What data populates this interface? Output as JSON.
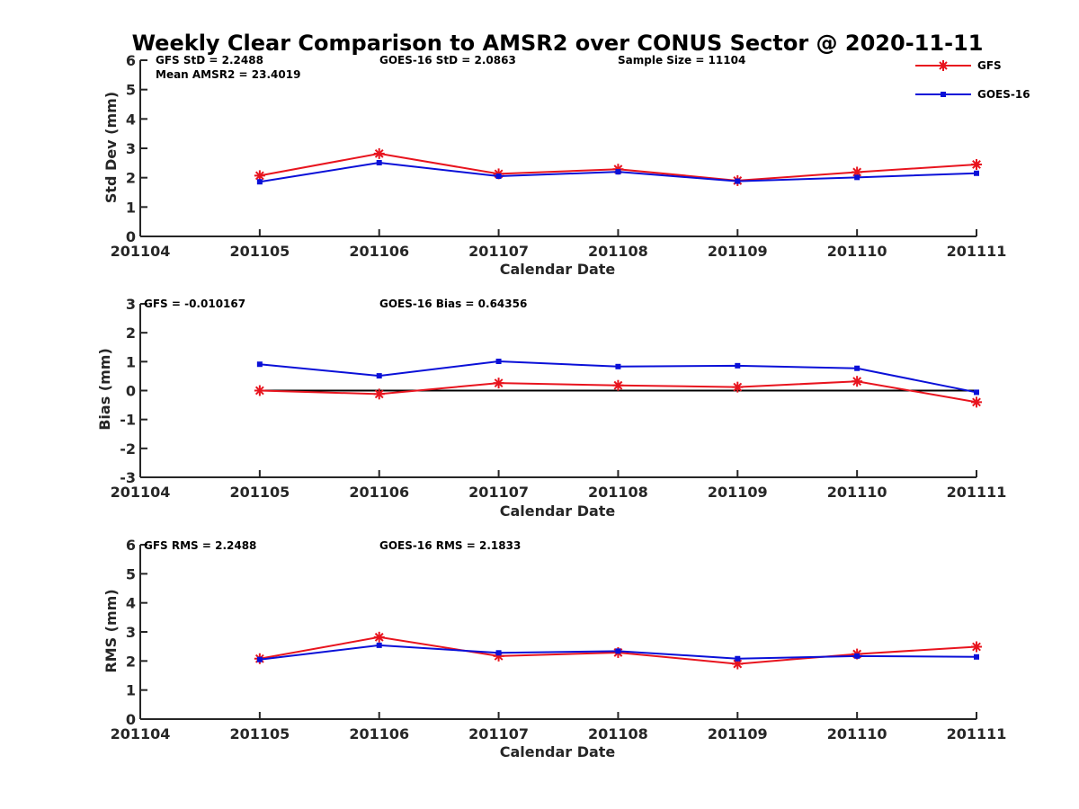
{
  "chart_data": [
    {
      "type": "line",
      "title": "Weekly Clear Comparison to AMSR2 over CONUS Sector @ 2020-11-11",
      "xlabel": "Calendar Date",
      "ylabel": "Std Dev (mm)",
      "categories": [
        "201104",
        "201105",
        "201106",
        "201107",
        "201108",
        "201109",
        "201110",
        "201111"
      ],
      "ylim": [
        0,
        6
      ],
      "yticks": [
        "0",
        "1",
        "2",
        "3",
        "4",
        "5",
        "6"
      ],
      "series": [
        {
          "name": "GFS",
          "color": "#e8141e",
          "marker": "asterisk",
          "values": [
            null,
            2.07,
            2.82,
            2.13,
            2.29,
            1.9,
            2.19,
            2.45
          ]
        },
        {
          "name": "GOES-16",
          "color": "#0a10d8",
          "marker": "square",
          "values": [
            null,
            1.86,
            2.51,
            2.05,
            2.2,
            1.88,
            2.01,
            2.15
          ]
        }
      ],
      "annotations": [
        "GFS StD = 2.2488",
        "Mean AMSR2 = 23.4019",
        "GOES-16 StD = 2.0863",
        "Sample Size = 11104"
      ],
      "legend": {
        "placement": "top-right",
        "entries": [
          "GFS",
          "GOES-16"
        ]
      }
    },
    {
      "type": "line",
      "xlabel": "Calendar Date",
      "ylabel": "Bias (mm)",
      "categories": [
        "201104",
        "201105",
        "201106",
        "201107",
        "201108",
        "201109",
        "201110",
        "201111"
      ],
      "ylim": [
        -3,
        3
      ],
      "yticks": [
        "-3",
        "-2",
        "-1",
        "0",
        "1",
        "2",
        "3"
      ],
      "zero_line": true,
      "series": [
        {
          "name": "GFS",
          "color": "#e8141e",
          "marker": "asterisk",
          "values": [
            null,
            0.0,
            -0.12,
            0.26,
            0.18,
            0.12,
            0.32,
            -0.4
          ]
        },
        {
          "name": "GOES-16",
          "color": "#0a10d8",
          "marker": "square",
          "values": [
            null,
            0.91,
            0.51,
            1.01,
            0.83,
            0.86,
            0.77,
            -0.06
          ]
        }
      ],
      "annotations": [
        "GFS = -0.010167",
        "GOES-16 Bias  = 0.64356"
      ]
    },
    {
      "type": "line",
      "xlabel": "Calendar Date",
      "ylabel": "RMS (mm)",
      "categories": [
        "201104",
        "201105",
        "201106",
        "201107",
        "201108",
        "201109",
        "201110",
        "201111"
      ],
      "ylim": [
        0,
        6
      ],
      "yticks": [
        "0",
        "1",
        "2",
        "3",
        "4",
        "5",
        "6"
      ],
      "series": [
        {
          "name": "GFS",
          "color": "#e8141e",
          "marker": "asterisk",
          "values": [
            null,
            2.08,
            2.82,
            2.17,
            2.29,
            1.9,
            2.24,
            2.49
          ]
        },
        {
          "name": "GOES-16",
          "color": "#0a10d8",
          "marker": "square",
          "values": [
            null,
            2.05,
            2.54,
            2.28,
            2.34,
            2.08,
            2.17,
            2.14
          ]
        }
      ],
      "annotations": [
        "GFS RMS = 2.2488",
        "GOES-16 RMS = 2.1833"
      ]
    }
  ]
}
